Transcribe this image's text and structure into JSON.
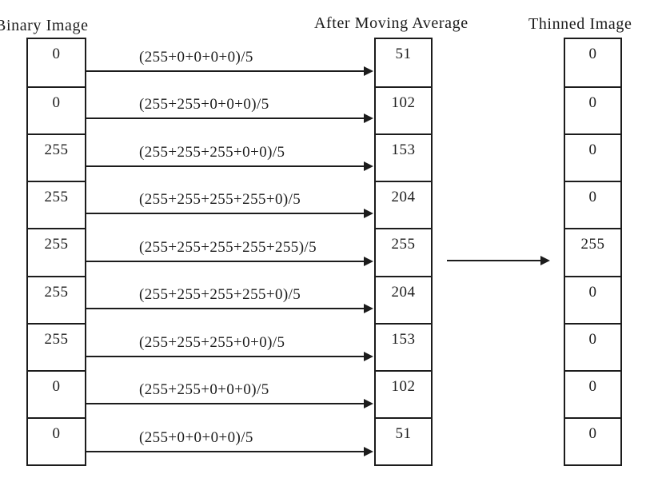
{
  "diagram": {
    "labels": {
      "binary": "Binary Image",
      "average": "After Moving Average",
      "thinned": "Thinned Image"
    },
    "binary_values": [
      "0",
      "0",
      "255",
      "255",
      "255",
      "255",
      "255",
      "0",
      "0"
    ],
    "average_values": [
      "51",
      "102",
      "153",
      "204",
      "255",
      "204",
      "153",
      "102",
      "51"
    ],
    "thinned_values": [
      "0",
      "0",
      "0",
      "0",
      "255",
      "0",
      "0",
      "0",
      "0"
    ],
    "formulas": [
      "(255+0+0+0+0)/5",
      "(255+255+0+0+0)/5",
      "(255+255+255+0+0)/5",
      "(255+255+255+255+0)/5",
      "(255+255+255+255+255)/5",
      "(255+255+255+255+0)/5",
      "(255+255+255+0+0)/5",
      "(255+255+0+0+0)/5",
      "(255+0+0+0+0)/5"
    ],
    "colors": {
      "ink": "#1c1c1c",
      "background": "#ffffff"
    }
  }
}
